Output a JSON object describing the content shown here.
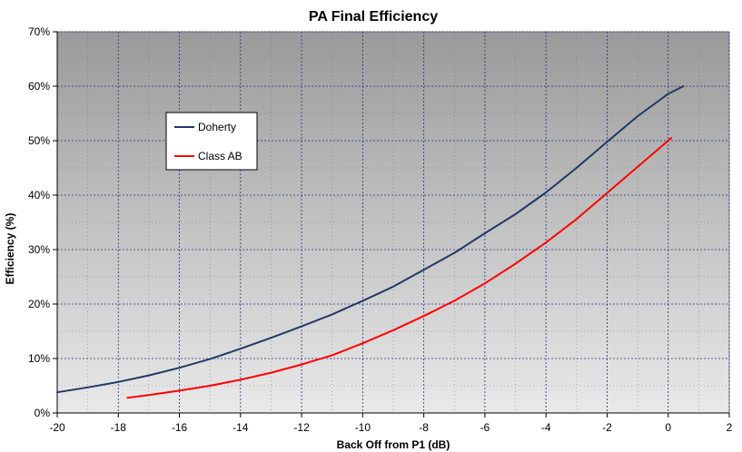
{
  "chart_data": {
    "type": "line",
    "title": "PA Final Efficiency",
    "xlabel": "Back Off from P1 (dB)",
    "ylabel": "Efficiency (%)",
    "xlim": [
      -20,
      2
    ],
    "ylim": [
      0,
      70
    ],
    "x_ticks": [
      -20,
      -18,
      -16,
      -14,
      -12,
      -10,
      -8,
      -6,
      -4,
      -2,
      0,
      2
    ],
    "y_ticks": [
      0,
      10,
      20,
      30,
      40,
      50,
      60,
      70
    ],
    "x_tick_labels": [
      "-20",
      "-18",
      "-16",
      "-14",
      "-12",
      "-10",
      "-8",
      "-6",
      "-4",
      "-2",
      "0",
      "2"
    ],
    "y_tick_labels": [
      "0%",
      "10%",
      "20%",
      "30%",
      "40%",
      "50%",
      "60%",
      "70%"
    ],
    "grid": true,
    "legend_position": "upper-left inside plot",
    "series": [
      {
        "name": "Doherty",
        "color": "#1f3a68",
        "x": [
          -20,
          -19,
          -18,
          -17,
          -16,
          -15,
          -14,
          -13,
          -12,
          -11,
          -10,
          -9,
          -8,
          -7,
          -6,
          -5,
          -4,
          -3,
          -2,
          -1,
          0,
          0.5
        ],
        "y": [
          3.8,
          4.7,
          5.7,
          6.9,
          8.3,
          9.9,
          11.8,
          13.8,
          15.9,
          18.1,
          20.6,
          23.2,
          26.3,
          29.4,
          33.0,
          36.5,
          40.5,
          45.0,
          49.8,
          54.5,
          58.6,
          60.0
        ]
      },
      {
        "name": "Class AB",
        "color": "#ff0000",
        "x": [
          -17.7,
          -17,
          -16,
          -15,
          -14,
          -13,
          -12,
          -11,
          -10,
          -9,
          -8,
          -7,
          -6,
          -5,
          -4,
          -3,
          -2,
          -1,
          0,
          0.1
        ],
        "y": [
          2.8,
          3.3,
          4.1,
          5.0,
          6.1,
          7.4,
          8.9,
          10.6,
          12.8,
          15.2,
          17.8,
          20.6,
          23.8,
          27.4,
          31.3,
          35.6,
          40.4,
          45.2,
          50.0,
          50.5
        ]
      }
    ]
  }
}
